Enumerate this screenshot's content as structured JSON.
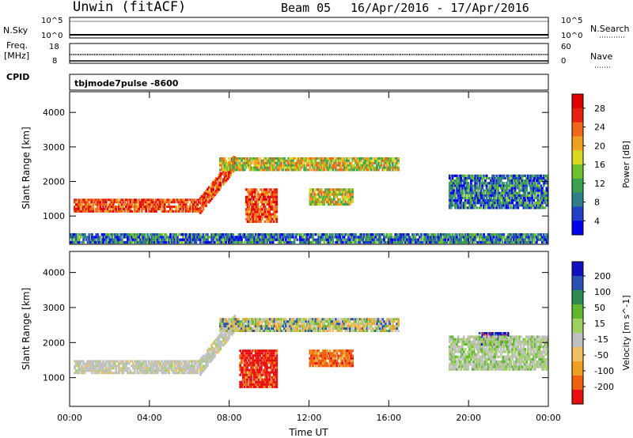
{
  "header": {
    "station": "Unwin (fitACF)",
    "beam": "Beam 05",
    "dates": "16/Apr/2016 - 17/Apr/2016"
  },
  "strips": {
    "nsky_label": "N.Sky",
    "nsky_top": "10^5",
    "nsky_bottom": "10^0",
    "nsearch_label": "N.Search",
    "nsearch_top": "10^5",
    "nsearch_bottom": "10^0",
    "freq_label_1": "Freq.",
    "freq_label_2": "[MHz]",
    "freq_top": "18",
    "freq_bottom": "8",
    "nave_top": "60",
    "nave_bottom": "0",
    "nave_label": "Nave",
    "cpid_label": "CPID",
    "cpid_value": "tbjmode7pulse -8600"
  },
  "chart_data": [
    {
      "type": "heatmap",
      "title": "",
      "xlabel": "",
      "ylabel": "Slant Range [km]",
      "x_ticks": [
        "00:00",
        "04:00",
        "08:00",
        "12:00",
        "16:00",
        "20:00",
        "00:00"
      ],
      "y_ticks": [
        "1000",
        "2000",
        "3000",
        "4000"
      ],
      "y_tick_values": [
        1000,
        2000,
        3000,
        4000
      ],
      "ylim": [
        180,
        4600
      ],
      "xlim_hours": [
        0,
        24
      ],
      "colorbar": {
        "label": "Power [dB]",
        "ticks": [
          "4",
          "8",
          "12",
          "16",
          "20",
          "24",
          "28"
        ],
        "colors": [
          "#0000ee",
          "#2040c8",
          "#2f7f8a",
          "#3aa050",
          "#70c030",
          "#d8d820",
          "#f0a020",
          "#f06818",
          "#e82010",
          "#dd0000"
        ]
      },
      "features": [
        {
          "desc": "strong echoes",
          "t_start": 0.2,
          "t_end": 6.5,
          "range_km": [
            1100,
            1500
          ],
          "level": "high"
        },
        {
          "desc": "rising band",
          "t_start": 6.5,
          "t_end": 8.3,
          "range_km": [
            1200,
            2800
          ],
          "level": "high"
        },
        {
          "desc": "patch",
          "t_start": 8.8,
          "t_end": 10.4,
          "range_km": [
            800,
            1800
          ],
          "level": "high"
        },
        {
          "desc": "upper band",
          "t_start": 7.5,
          "t_end": 16.5,
          "range_km": [
            2300,
            2700
          ],
          "level": "medium"
        },
        {
          "desc": "patch",
          "t_start": 12,
          "t_end": 14.2,
          "range_km": [
            1300,
            1800
          ],
          "level": "medium"
        },
        {
          "desc": "evening band",
          "t_start": 19,
          "t_end": 24,
          "range_km": [
            1200,
            2200
          ],
          "level": "low"
        },
        {
          "desc": "near-range ground",
          "t_start": 0,
          "t_end": 24,
          "range_km": [
            200,
            500
          ],
          "level": "low"
        }
      ]
    },
    {
      "type": "heatmap",
      "title": "",
      "xlabel": "Time UT",
      "ylabel": "Slant Range [km]",
      "x_ticks": [
        "00:00",
        "04:00",
        "08:00",
        "12:00",
        "16:00",
        "20:00",
        "00:00"
      ],
      "y_ticks": [
        "1000",
        "2000",
        "3000",
        "4000"
      ],
      "y_tick_values": [
        1000,
        2000,
        3000,
        4000
      ],
      "ylim": [
        180,
        4600
      ],
      "xlim_hours": [
        0,
        24
      ],
      "colorbar": {
        "label": "Velocity [m s^-1]",
        "ticks": [
          "200",
          "100",
          "50",
          "15",
          "-15",
          "-50",
          "-100",
          "-200"
        ],
        "colors": [
          "#1010c0",
          "#2a50b0",
          "#2f8a50",
          "#60b830",
          "#a0d060",
          "#c0c0c0",
          "#f0c060",
          "#f0a020",
          "#f06010",
          "#e81010"
        ]
      },
      "features": [
        {
          "desc": "near-zero band",
          "t_start": 0.2,
          "t_end": 6.5,
          "range_km": [
            1100,
            1500
          ],
          "level": "grey"
        },
        {
          "desc": "rising band",
          "t_start": 6.5,
          "t_end": 8.3,
          "range_km": [
            1200,
            2800
          ],
          "level": "grey"
        },
        {
          "desc": "negative patch",
          "t_start": 8.5,
          "t_end": 10.4,
          "range_km": [
            700,
            1800
          ],
          "level": "red"
        },
        {
          "desc": "negative patch",
          "t_start": 12,
          "t_end": 14.2,
          "range_km": [
            1300,
            1800
          ],
          "level": "orange"
        },
        {
          "desc": "upper band",
          "t_start": 7.5,
          "t_end": 16.5,
          "range_km": [
            2300,
            2700
          ],
          "level": "mixed"
        },
        {
          "desc": "positive patch",
          "t_start": 20.5,
          "t_end": 22,
          "range_km": [
            1900,
            2300
          ],
          "level": "blue"
        },
        {
          "desc": "evening band",
          "t_start": 19,
          "t_end": 24,
          "range_km": [
            1200,
            2200
          ],
          "level": "grey-green"
        }
      ]
    }
  ]
}
